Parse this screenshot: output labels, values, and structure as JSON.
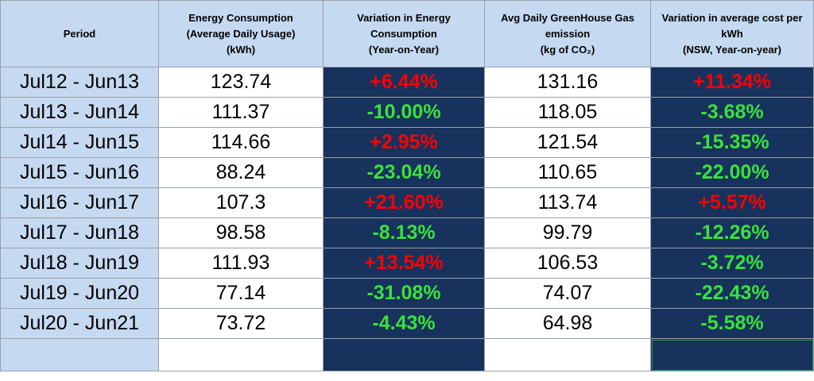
{
  "headers": {
    "period": [
      "Period"
    ],
    "energy": [
      "Energy Consumption",
      "(Average Daily Usage)",
      "(kWh)"
    ],
    "variation": [
      "Variation in Energy",
      "Consumption",
      "(Year-on-Year)"
    ],
    "ghg": [
      "Avg Daily GreenHouse Gas",
      "emission",
      "(kg of CO₂)"
    ],
    "cost": [
      "Variation in average cost per",
      "kWh",
      "(NSW, Year-on-year)"
    ]
  },
  "rows": [
    {
      "period": "Jul12 - Jun13",
      "energy": "123.74",
      "variation": "+6.44%",
      "ghg": "131.16",
      "cost": "+11.34%"
    },
    {
      "period": "Jul13 - Jun14",
      "energy": "111.37",
      "variation": "-10.00%",
      "ghg": "118.05",
      "cost": "-3.68%"
    },
    {
      "period": "Jul14 - Jun15",
      "energy": "114.66",
      "variation": "+2.95%",
      "ghg": "121.54",
      "cost": "-15.35%"
    },
    {
      "period": "Jul15 - Jun16",
      "energy": "88.24",
      "variation": "-23.04%",
      "ghg": "110.65",
      "cost": "-22.00%"
    },
    {
      "period": "Jul16 - Jun17",
      "energy": "107.3",
      "variation": "+21.60%",
      "ghg": "113.74",
      "cost": "+5.57%"
    },
    {
      "period": "Jul17 - Jun18",
      "energy": "98.58",
      "variation": "-8.13%",
      "ghg": "99.79",
      "cost": "-12.26%"
    },
    {
      "period": "Jul18 - Jun19",
      "energy": "111.93",
      "variation": "+13.54%",
      "ghg": "106.53",
      "cost": "-3.72%"
    },
    {
      "period": "Jul19 - Jun20",
      "energy": "77.14",
      "variation": "-31.08%",
      "ghg": "74.07",
      "cost": "-22.43%"
    },
    {
      "period": "Jul20 - Jun21",
      "energy": "73.72",
      "variation": "-4.43%",
      "ghg": "64.98",
      "cost": "-5.58%"
    }
  ],
  "colors": {
    "header_bg": "#c5d9f1",
    "dark_bg": "#17325c",
    "increase": "#ff0000",
    "decrease": "#39e23a"
  }
}
